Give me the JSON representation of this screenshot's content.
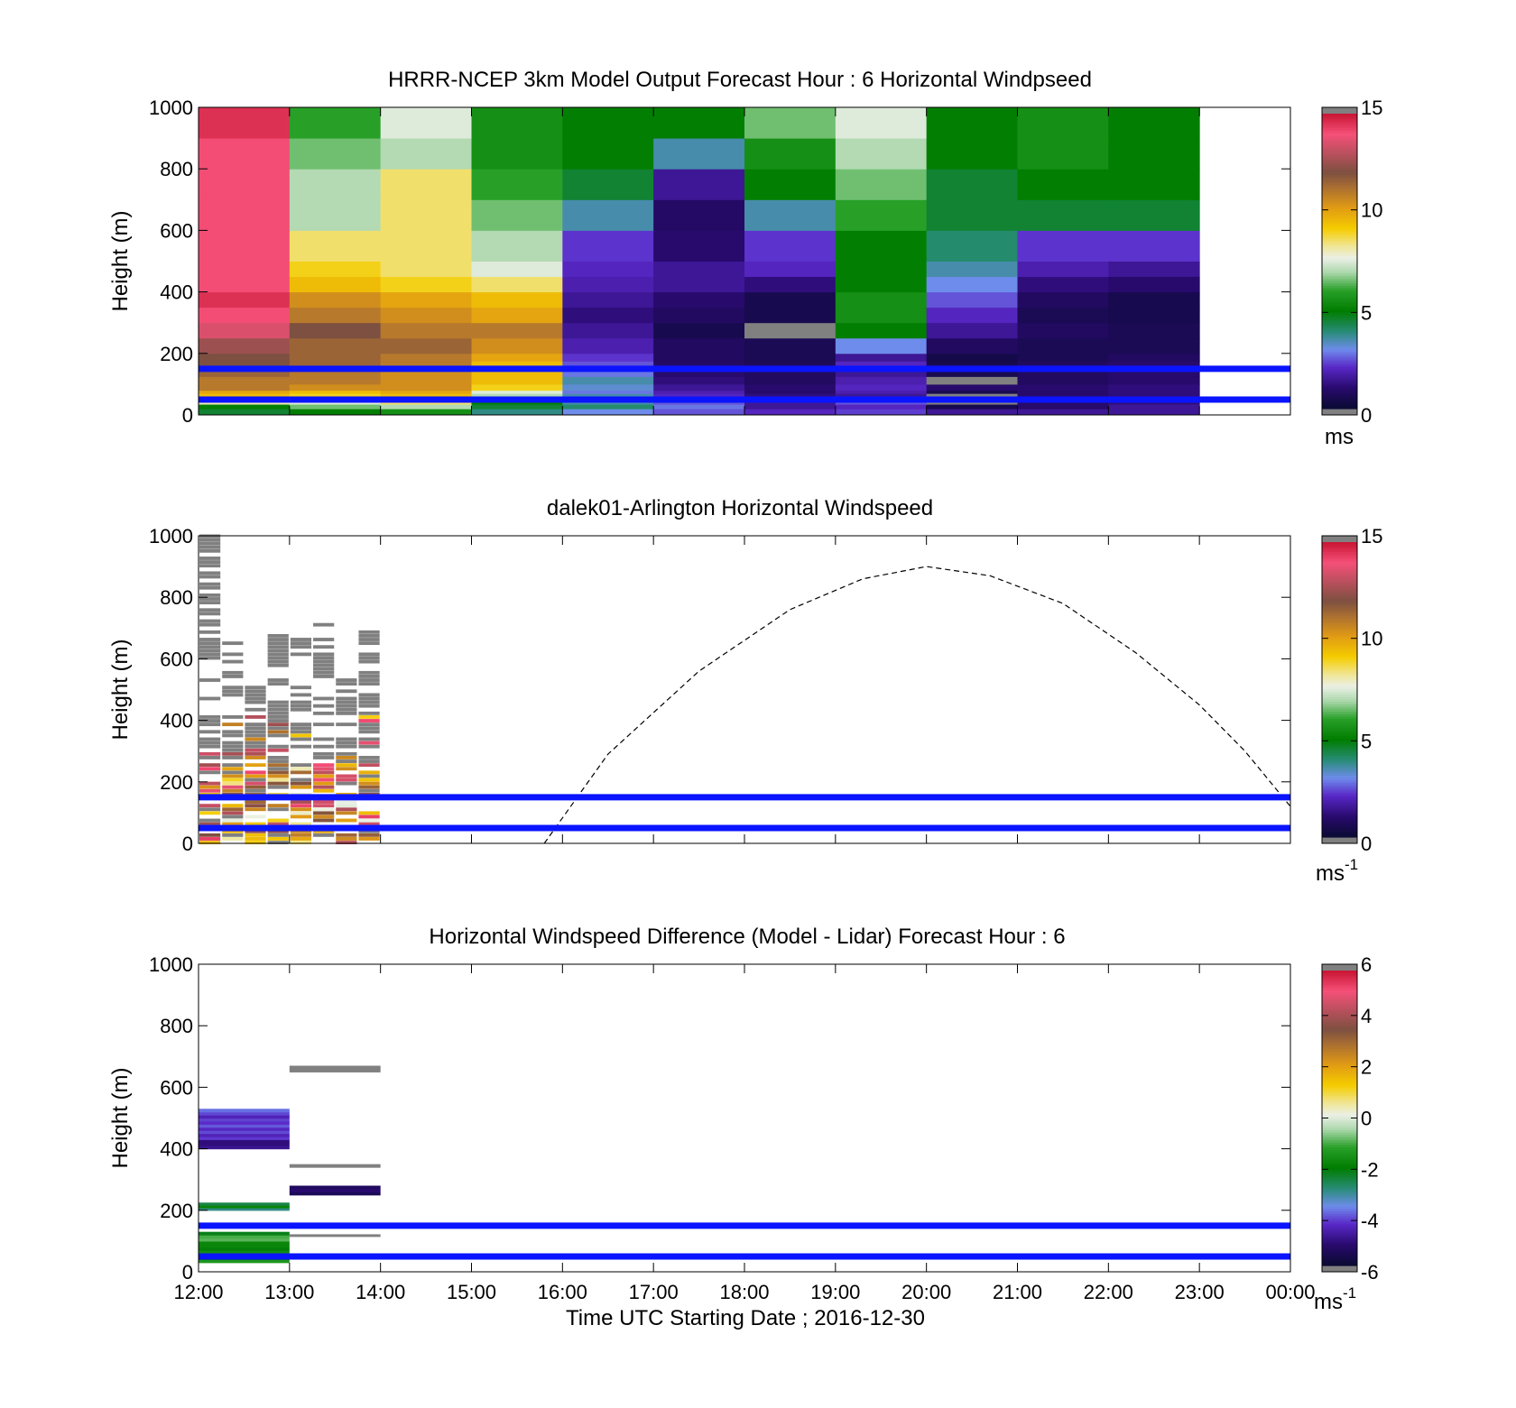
{
  "figure": {
    "colors": {
      "window_lines": "#0a14ff",
      "missing": "#808080",
      "dashed_curve": "#000000"
    }
  },
  "chart_data": [
    {
      "type": "heatmap",
      "title": "HRRR-NCEP 3km Model Output   Forecast Hour : 6 Horizontal Windpseed",
      "xlabel": "",
      "ylabel": "Height (m)",
      "ylim": [
        0,
        1000
      ],
      "yticks": [
        "0",
        "200",
        "400",
        "600",
        "800",
        "1000"
      ],
      "x_time_range_hours": [
        12,
        24
      ],
      "colorbar": {
        "range": [
          0,
          15
        ],
        "ticks": [
          "0",
          "5",
          "10",
          "15"
        ],
        "unit": "ms"
      },
      "reference_lines_m": [
        50,
        150
      ],
      "column_hours": [
        12,
        13,
        14,
        15,
        16,
        17,
        18,
        19,
        20,
        21,
        22
      ],
      "row_edges_m": [
        0,
        20,
        35,
        50,
        60,
        70,
        80,
        100,
        125,
        150,
        175,
        200,
        250,
        300,
        350,
        400,
        450,
        500,
        600,
        700,
        800,
        900,
        1000
      ],
      "speeds_ms": [
        [
          4.5,
          5.0,
          5.5,
          3.8,
          3.0,
          2.5,
          2.0,
          2.3,
          1.5,
          1.5,
          1.5
        ],
        [
          5.0,
          6.5,
          7.0,
          4.5,
          4.0,
          2.8,
          1.5,
          2.0,
          0.5,
          1.0,
          1.5
        ],
        [
          8.0,
          7.5,
          8.5,
          5.0,
          3.5,
          2.5,
          1.5,
          2.5,
          -1.0,
          1.0,
          1.2
        ],
        [
          8.5,
          7.5,
          9.5,
          6.0,
          4.5,
          2.0,
          1.5,
          2.5,
          -1.0,
          1.0,
          1.2
        ],
        [
          9.5,
          9.0,
          9.5,
          7.0,
          3.5,
          2.0,
          1.2,
          1.5,
          -1.0,
          1.0,
          1.2
        ],
        [
          10.0,
          9.5,
          10.0,
          7.5,
          2.8,
          1.8,
          1.0,
          1.8,
          0.5,
          1.0,
          1.2
        ],
        [
          11.0,
          10.5,
          10.5,
          9.0,
          3.2,
          1.5,
          1.0,
          2.0,
          1.0,
          1.0,
          1.2
        ],
        [
          11.0,
          11.0,
          10.5,
          9.5,
          3.5,
          1.2,
          0.8,
          1.8,
          -1.0,
          0.8,
          1.0
        ],
        [
          11.5,
          11.0,
          10.5,
          9.5,
          2.8,
          1.0,
          0.8,
          1.5,
          0.5,
          0.8,
          1.0
        ],
        [
          12.0,
          11.5,
          11.0,
          9.5,
          2.5,
          0.9,
          0.7,
          2.0,
          0.5,
          0.8,
          1.0
        ],
        [
          12.0,
          11.5,
          11.0,
          10.0,
          2.2,
          0.8,
          0.6,
          1.5,
          0.4,
          0.6,
          0.8
        ],
        [
          12.5,
          11.5,
          11.5,
          10.5,
          1.8,
          0.8,
          0.6,
          3.0,
          0.8,
          0.6,
          0.6
        ],
        [
          13.5,
          12.0,
          11.0,
          11.0,
          1.5,
          0.5,
          -1.0,
          5.0,
          1.5,
          0.8,
          0.6
        ],
        [
          14.0,
          11.0,
          10.5,
          10.0,
          1.2,
          0.8,
          0.5,
          5.5,
          2.0,
          0.6,
          0.5
        ],
        [
          14.5,
          10.5,
          10.0,
          9.5,
          1.5,
          1.0,
          0.5,
          5.5,
          2.5,
          0.8,
          0.5
        ],
        [
          14.0,
          9.5,
          9.0,
          8.5,
          1.8,
          1.5,
          1.2,
          5.0,
          3.0,
          1.2,
          1.0
        ],
        [
          14.0,
          9.0,
          8.5,
          7.5,
          2.0,
          1.5,
          2.0,
          5.0,
          3.5,
          1.8,
          1.5
        ],
        [
          14.0,
          8.5,
          8.5,
          7.0,
          2.2,
          1.0,
          2.2,
          5.0,
          4.0,
          2.2,
          2.2
        ],
        [
          14.0,
          7.0,
          8.5,
          6.5,
          3.5,
          0.9,
          3.5,
          6.0,
          4.5,
          4.5,
          4.5
        ],
        [
          14.0,
          7.0,
          8.5,
          6.0,
          4.5,
          1.5,
          5.0,
          6.5,
          4.5,
          5.0,
          5.0
        ],
        [
          14.0,
          6.5,
          7.0,
          5.5,
          5.0,
          3.5,
          5.5,
          7.0,
          5.0,
          5.5,
          5.0
        ],
        [
          14.5,
          6.0,
          7.5,
          5.5,
          5.0,
          5.0,
          6.5,
          7.5,
          5.0,
          5.5,
          5.0
        ]
      ]
    },
    {
      "type": "heatmap",
      "title": "dalek01-Arlington  Horizontal Windspeed",
      "xlabel": "",
      "ylabel": "Height (m)",
      "ylim": [
        0,
        1000
      ],
      "yticks": [
        "0",
        "200",
        "400",
        "600",
        "800",
        "1000"
      ],
      "x_time_range_hours": [
        12,
        24
      ],
      "colorbar": {
        "range": [
          0,
          15
        ],
        "ticks": [
          "0",
          "5",
          "10",
          "15"
        ],
        "unit": "ms",
        "unit_superscript": "-1"
      },
      "reference_lines_m": [
        50,
        150
      ],
      "observation_profiles_hours": [
        12.0,
        12.25,
        12.5,
        12.75,
        13.0,
        13.25,
        13.5,
        13.75
      ],
      "observation_top_m": [
        1000,
        650,
        530,
        680,
        670,
        710,
        540,
        700
      ],
      "missing_value_color": "gray",
      "dashed_curve": {
        "style": "dashed",
        "points": [
          [
            15.8,
            0
          ],
          [
            16.5,
            290
          ],
          [
            17.5,
            560
          ],
          [
            18.5,
            760
          ],
          [
            19.3,
            860
          ],
          [
            20.0,
            900
          ],
          [
            20.7,
            870
          ],
          [
            21.5,
            780
          ],
          [
            22.3,
            620
          ],
          [
            23.0,
            450
          ],
          [
            23.5,
            300
          ],
          [
            24.0,
            120
          ]
        ]
      }
    },
    {
      "type": "heatmap",
      "title": "Horizontal Windspeed Difference (Model - Lidar) Forecast Hour : 6",
      "xlabel": "Time UTC  Starting Date ; 2016-12-30",
      "ylabel": "Height (m)",
      "ylim": [
        0,
        1000
      ],
      "yticks": [
        "0",
        "200",
        "400",
        "600",
        "800",
        "1000"
      ],
      "x_time_range_hours": [
        12,
        24
      ],
      "xticks": [
        "12:00",
        "13:00",
        "14:00",
        "15:00",
        "16:00",
        "17:00",
        "18:00",
        "19:00",
        "20:00",
        "21:00",
        "22:00",
        "23:00",
        "00:00"
      ],
      "colorbar": {
        "range": [
          -6,
          6
        ],
        "ticks": [
          "-6",
          "-4",
          "-2",
          "0",
          "2",
          "4",
          "6"
        ],
        "unit": "ms",
        "unit_superscript": "-1"
      },
      "reference_lines_m": [
        50,
        150
      ],
      "bands": [
        {
          "hours": [
            12,
            13
          ],
          "m": [
            400,
            530
          ],
          "diff_ms": -4.5
        },
        {
          "hours": [
            12,
            13
          ],
          "m": [
            200,
            225
          ],
          "diff_ms": -2.5
        },
        {
          "hours": [
            12,
            13
          ],
          "m": [
            30,
            130
          ],
          "diff_ms": -1.5
        },
        {
          "hours": [
            13,
            14
          ],
          "m": [
            650,
            670
          ],
          "diff_ms": null
        },
        {
          "hours": [
            13,
            14
          ],
          "m": [
            340,
            350
          ],
          "diff_ms": null
        },
        {
          "hours": [
            13,
            14
          ],
          "m": [
            250,
            280
          ],
          "diff_ms": -5.5
        },
        {
          "hours": [
            13,
            14
          ],
          "m": [
            115,
            122
          ],
          "diff_ms": null
        }
      ]
    }
  ]
}
